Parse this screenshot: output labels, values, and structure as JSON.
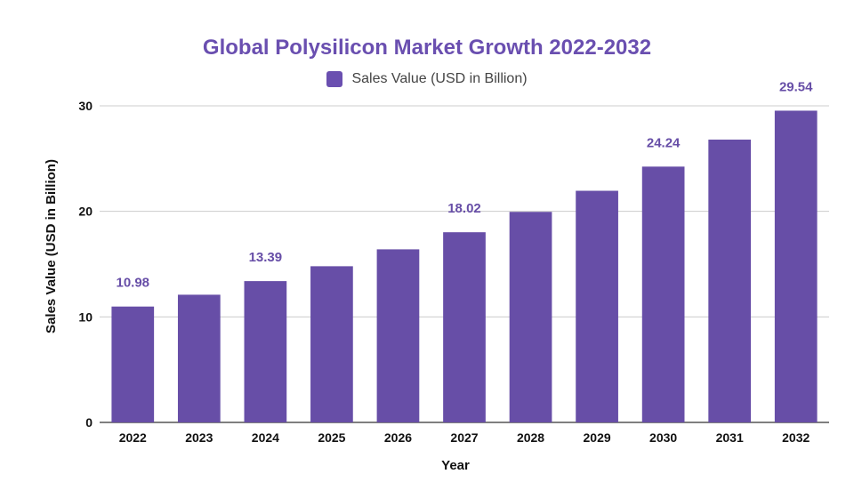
{
  "chart_data": {
    "type": "bar",
    "title": "Global Polysilicon Market Growth 2022-2032",
    "xlabel": "Year",
    "ylabel": "Sales Value (USD in Billion)",
    "ylim": [
      0,
      30
    ],
    "yticks": [
      0,
      10,
      20,
      30
    ],
    "grid": true,
    "legend_position": "top-center",
    "categories": [
      "2022",
      "2023",
      "2024",
      "2025",
      "2026",
      "2027",
      "2028",
      "2029",
      "2030",
      "2031",
      "2032"
    ],
    "series": [
      {
        "name": "Sales Value (USD in Billion)",
        "color": "#674ea7",
        "values": [
          10.98,
          12.1,
          13.39,
          14.8,
          16.4,
          18.02,
          19.95,
          21.95,
          24.24,
          26.8,
          29.54
        ],
        "data_labels": [
          "10.98",
          "",
          "13.39",
          "",
          "",
          "18.02",
          "",
          "",
          "24.24",
          "",
          "29.54"
        ]
      }
    ]
  }
}
